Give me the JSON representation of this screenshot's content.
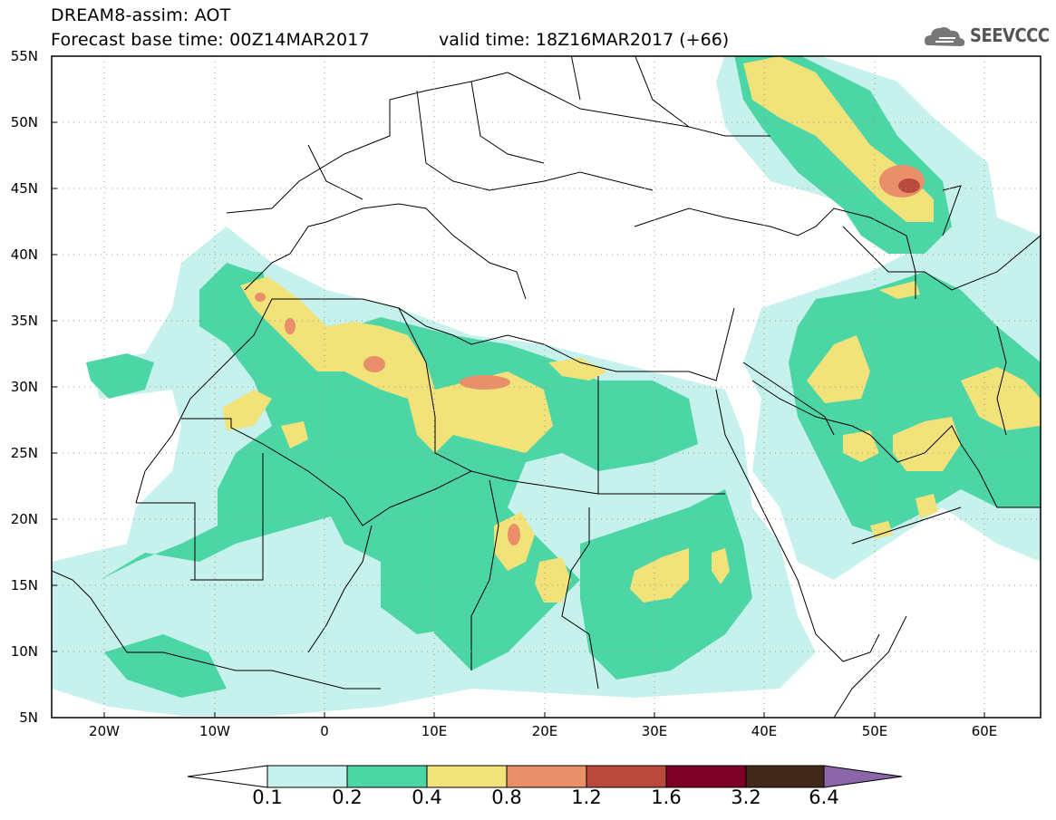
{
  "header": {
    "title_line1": "DREAM8-assim: AOT",
    "title_line2": "Forecast base time: 00Z14MAR2017",
    "valid_time": "valid time: 18Z16MAR2017 (+66)",
    "logo_text": "SEEVCCC"
  },
  "axes": {
    "lat_labels": [
      "55N",
      "50N",
      "45N",
      "40N",
      "35N",
      "30N",
      "25N",
      "20N",
      "15N",
      "10N",
      "5N"
    ],
    "lon_labels": [
      "20W",
      "10W",
      "0",
      "10E",
      "20E",
      "30E",
      "40E",
      "50E",
      "60E"
    ]
  },
  "colorbar": {
    "labels": [
      "0.1",
      "0.2",
      "0.4",
      "0.8",
      "1.2",
      "1.6",
      "3.2",
      "6.4"
    ],
    "colors": [
      "#ffffff",
      "#c6f1ec",
      "#4cd6a5",
      "#f2e27a",
      "#e98f6a",
      "#b9493a",
      "#7c0026",
      "#40291a",
      "#8c66a8"
    ]
  }
}
